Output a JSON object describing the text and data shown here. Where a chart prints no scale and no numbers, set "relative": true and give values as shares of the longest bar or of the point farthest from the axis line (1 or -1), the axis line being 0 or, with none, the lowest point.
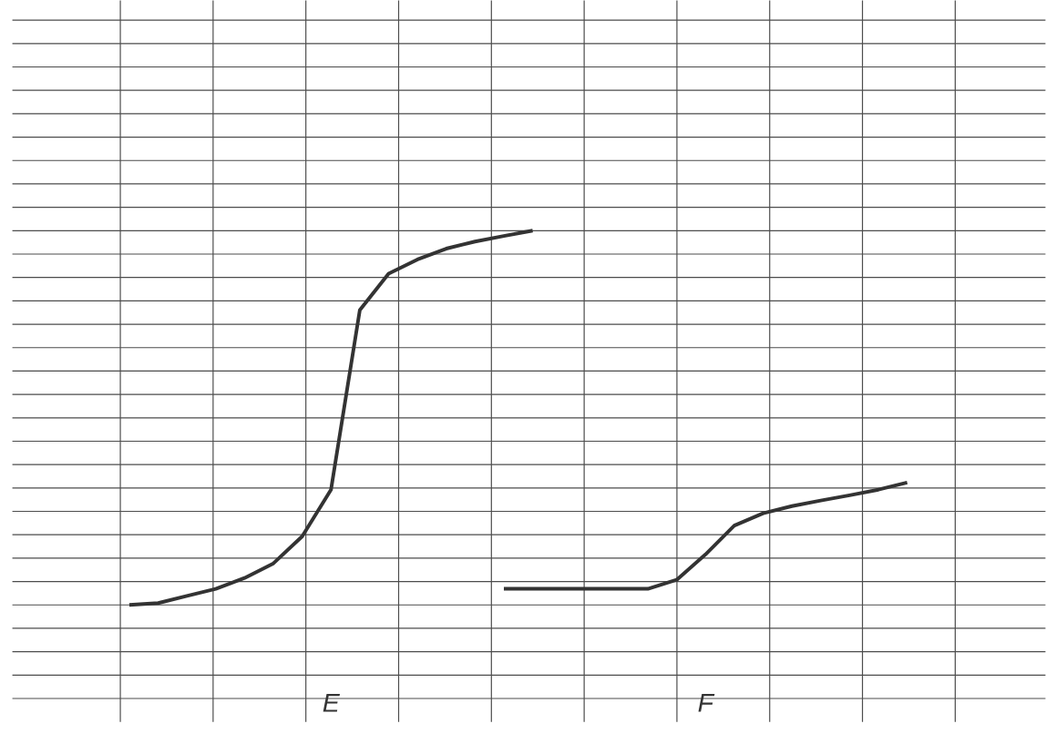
{
  "chart_data": {
    "type": "line",
    "relative": true,
    "grid": true,
    "marker": "none",
    "line_style": "solid",
    "categories": [
      null,
      null,
      null,
      null,
      null,
      null,
      null,
      null,
      null,
      null,
      null,
      null,
      null,
      null,
      null,
      null,
      null,
      null,
      null,
      null,
      null,
      null,
      null,
      null,
      null,
      null,
      null,
      null
    ],
    "annotations": [
      "E",
      "F"
    ],
    "series": [
      {
        "color": "#333333",
        "values": [
          0,
          0.005,
          0.024,
          0.043,
          0.072,
          0.111,
          0.183,
          0.308,
          0.788,
          0.885,
          0.923,
          0.952,
          0.971,
          0.986,
          1.0,
          null,
          null,
          null,
          null,
          null,
          null,
          null,
          null,
          null,
          null,
          null,
          null,
          null
        ]
      },
      {
        "color": "#333333",
        "values": [
          null,
          null,
          null,
          null,
          null,
          null,
          null,
          null,
          null,
          null,
          null,
          null,
          null,
          0.043,
          0.043,
          0.043,
          0.043,
          0.043,
          0.043,
          0.067,
          0.135,
          0.212,
          0.245,
          0.264,
          0.279,
          0.293,
          0.308,
          0.327
        ]
      }
    ]
  }
}
